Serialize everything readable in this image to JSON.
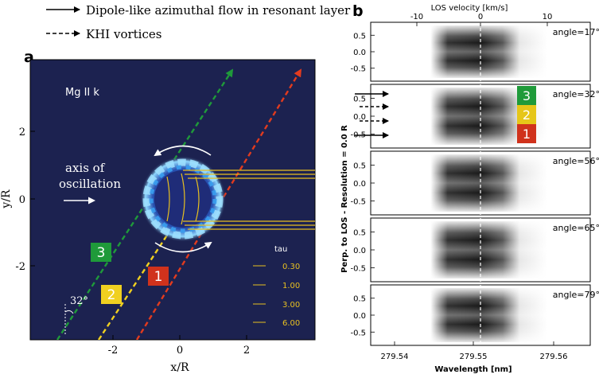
{
  "legend": {
    "solid_label": "Dipole-like azimuthal flow in resonant layer",
    "dashed_label": "KHI vortices"
  },
  "panel_a": {
    "letter": "a",
    "line_label": "Mg II k",
    "xlabel": "x/R",
    "ylabel": "y/R",
    "xticks": [
      "-2",
      "0",
      "2"
    ],
    "yticks": [
      "2",
      "0",
      "-2"
    ],
    "axis_text_1": "axis of",
    "axis_text_2": "oscillation",
    "angle_label": "32°",
    "ray_labels": [
      "3",
      "2",
      "1"
    ],
    "tau_title": "tau",
    "tau_values": [
      "0.30",
      "1.00",
      "3.00",
      "6.00"
    ],
    "colors": {
      "background": "#1c2250",
      "ray1": "#e23b1e",
      "ray2": "#f0d020",
      "ray3": "#1f9a3a",
      "tube": "#5fb8ff",
      "tau_line": "#e8c020"
    }
  },
  "panel_b": {
    "letter": "b",
    "top_label": "LOS velocity [km/s]",
    "top_ticks": [
      "-10",
      "0",
      "10"
    ],
    "xlabel": "Wavelength [nm]",
    "xticks": [
      "279.54",
      "279.55",
      "279.56"
    ],
    "ylabel": "Perp. to LOS - Resolution = 0.0 R",
    "yticks": [
      "0.5",
      "0.0",
      "-0.5"
    ],
    "angles": [
      "angle=17°",
      "angle=32°",
      "angle=56°",
      "angle=65°",
      "angle=79°"
    ],
    "boxes": [
      {
        "label": "3",
        "color": "#1f9a3a"
      },
      {
        "label": "2",
        "color": "#e6c619"
      },
      {
        "label": "1",
        "color": "#d0321c"
      }
    ]
  }
}
